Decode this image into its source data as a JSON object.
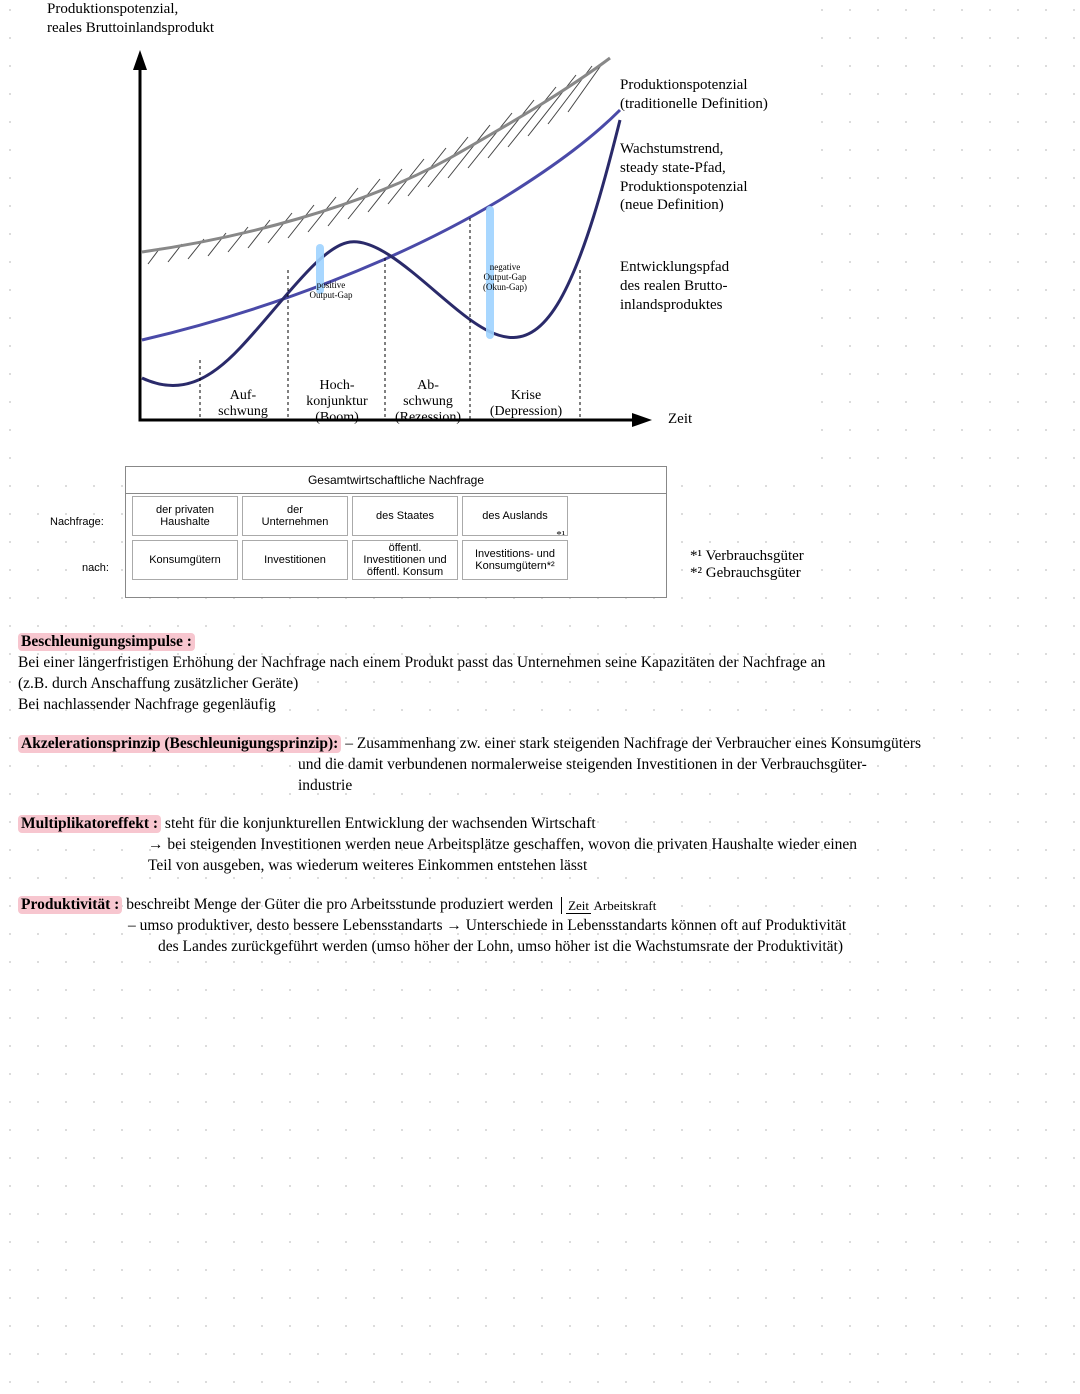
{
  "diagram": {
    "y_axis_label": "Produktionspotenzial,\nreales Bruttoinlandsprodukt",
    "x_axis_label": "Zeit",
    "colors": {
      "potential": "#888888",
      "trend": "#4a4aa8",
      "realpath": "#2a2a6a",
      "gap_highlight": "#9fd3ff"
    },
    "gap_labels": {
      "pos": "positive\nOutput-Gap",
      "neg": "negative\nOutput-Gap\n(Okun-Gap)"
    },
    "line_labels": {
      "potential": "Produktionspotenzial\n(traditionelle Definition)",
      "trend": "Wachstumstrend,\nsteady state-Pfad,\nProduktionspotenzial\n(neue Definition)",
      "realpath": "Entwicklungspfad\ndes realen Brutto-\ninlandsproduktes"
    },
    "phases": [
      "Auf-\nschwung",
      "Hoch-\nkonjunktur\n(Boom)",
      "Ab-\nschwung\n(Rezession)",
      "Krise\n(Depression)"
    ]
  },
  "demand_table": {
    "title": "Gesamtwirtschaftliche Nachfrage",
    "row1_label": "Nachfrage:",
    "row2_label": "nach:",
    "row1": [
      "der privaten\nHaushalte",
      "der\nUnternehmen",
      "des Staates",
      "des Auslands"
    ],
    "row2": [
      "Konsumgütern",
      "Investitionen",
      "öffentl.\nInvestitionen und\nöffentl. Konsum",
      "Investitions- und\nKonsumgütern*²"
    ],
    "star1_in_cell": "*¹"
  },
  "star_notes": {
    "s1": "*¹ Verbrauchsgüter",
    "s2": "*² Gebrauchsgüter"
  },
  "notes": {
    "s1_title": "Beschleunigungsimpulse :",
    "s1_l1": "Bei einer längerfristigen Erhöhung der Nachfrage nach einem Produkt passt  das  Unternehmen seine Kapazitäten der Nachfrage an",
    "s1_l2": "(z.B. durch Anschaffung zusätzlicher Geräte)",
    "s1_l3": "Bei nachlassender Nachfrage gegenläufig",
    "s2_title": "Akzelerationsprinzip (Beschleunigungsprinzip):",
    "s2_l1": "– Zusammenhang zw. einer stark steigenden Nachfrage der Verbraucher eines Konsumgüters",
    "s2_l2": "und die damit verbundenen normalerweise steigenden Investitionen in der Verbrauchsgüter-",
    "s2_l3": "industrie",
    "s3_title": "Multiplikatoreffekt :",
    "s3_l1": "steht für die konjunkturellen Entwicklung  der wachsenden Wirtschaft",
    "s3_l2": "→ bei steigenden Investitionen werden neue Arbeitsplätze geschaffen, wovon die privaten Haushalte wieder einen",
    "s3_l3": "Teil von ausgeben, was wiederum weiteres Einkommen entstehen lässt",
    "s4_title": "Produktivität :",
    "s4_l1": "beschreibt Menge der Güter die pro Arbeitsstunde produziert werden",
    "s4_frac_top": "Zeit",
    "s4_frac_bot": "Arbeitskraft",
    "s4_l2": "– umso produktiver, desto bessere Lebensstandarts → Unterschiede in Lebensstandarts können oft  auf Produktivität",
    "s4_l3": "des Landes zurückgeführt werden (umso höher der Lohn, umso höher ist  die Wachstumsrate der Produktivität)"
  },
  "style": {
    "highlight": "#f7c6cf",
    "handwritten_font": "Comic Sans MS",
    "serif_font": "Times New Roman",
    "body_fontsize": 15.5
  }
}
